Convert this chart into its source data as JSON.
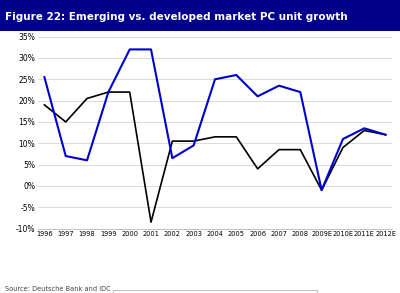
{
  "title": "Figure 22: Emerging vs. developed market PC unit growth",
  "title_bg_color": "#00008B",
  "title_text_color": "#ffffff",
  "source": "Source: Deutsche Bank and IDC",
  "years": [
    "1996",
    "1997",
    "1998",
    "1999",
    "2000",
    "2001",
    "2002",
    "2003",
    "2004",
    "2005",
    "2006",
    "2007",
    "2008",
    "2009E",
    "2010E",
    "2011E",
    "2012E"
  ],
  "developed": [
    19,
    15,
    20.5,
    22,
    22,
    -8.5,
    10.5,
    10.5,
    11.5,
    11.5,
    4,
    8.5,
    8.5,
    -1,
    9,
    13,
    12
  ],
  "emerging": [
    25.5,
    7,
    6,
    22,
    32,
    32,
    6.5,
    9.5,
    25,
    26,
    21,
    23.5,
    22,
    -1,
    11,
    13.5,
    12
  ],
  "developed_color": "#000000",
  "emerging_color": "#0000cc",
  "grid_color": "#cccccc",
  "bg_color": "#ffffff",
  "ylim": [
    -10,
    35
  ],
  "yticks": [
    -10,
    -5,
    0,
    5,
    10,
    15,
    20,
    25,
    30,
    35
  ],
  "ytick_labels": [
    "-10%",
    "-5%",
    "0%",
    "5%",
    "10%",
    "15%",
    "20%",
    "25%",
    "30%",
    "35%"
  ]
}
